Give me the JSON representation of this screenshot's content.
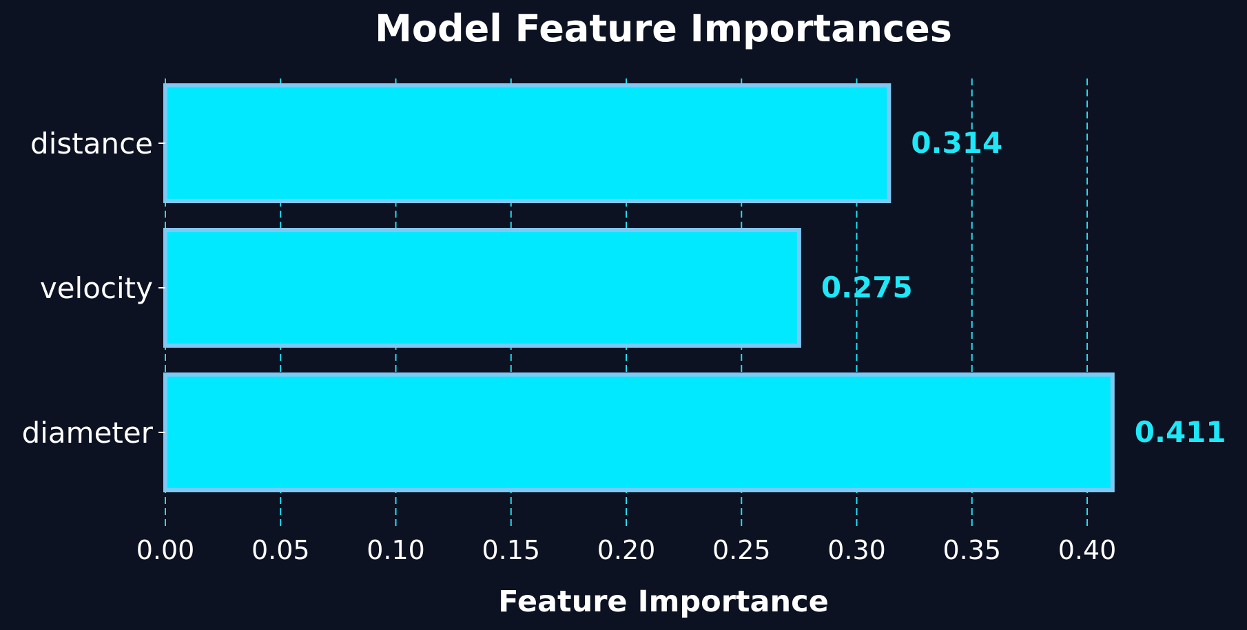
{
  "chart_data": {
    "type": "bar",
    "orientation": "horizontal",
    "title": "Model Feature Importances",
    "xlabel": "Feature Importance",
    "ylabel": "",
    "categories": [
      "distance",
      "velocity",
      "diameter"
    ],
    "values": [
      0.314,
      0.275,
      0.411
    ],
    "data_labels": [
      "0.314",
      "0.275",
      "0.411"
    ],
    "xlim": [
      0.0,
      0.42
    ],
    "xticks": [
      0.0,
      0.05,
      0.1,
      0.15,
      0.2,
      0.25,
      0.3,
      0.35,
      0.4
    ],
    "xtick_labels": [
      "0.00",
      "0.05",
      "0.10",
      "0.15",
      "0.20",
      "0.25",
      "0.30",
      "0.35",
      "0.40"
    ],
    "grid": "x-dashed",
    "legend": "none",
    "colors": {
      "background": "#0c1222",
      "bar_fill": "#00e9ff",
      "bar_edge": "#7ec8f4",
      "grid": "#1ee0f0",
      "data_label": "#1ee8f8",
      "text": "#ffffff"
    }
  }
}
